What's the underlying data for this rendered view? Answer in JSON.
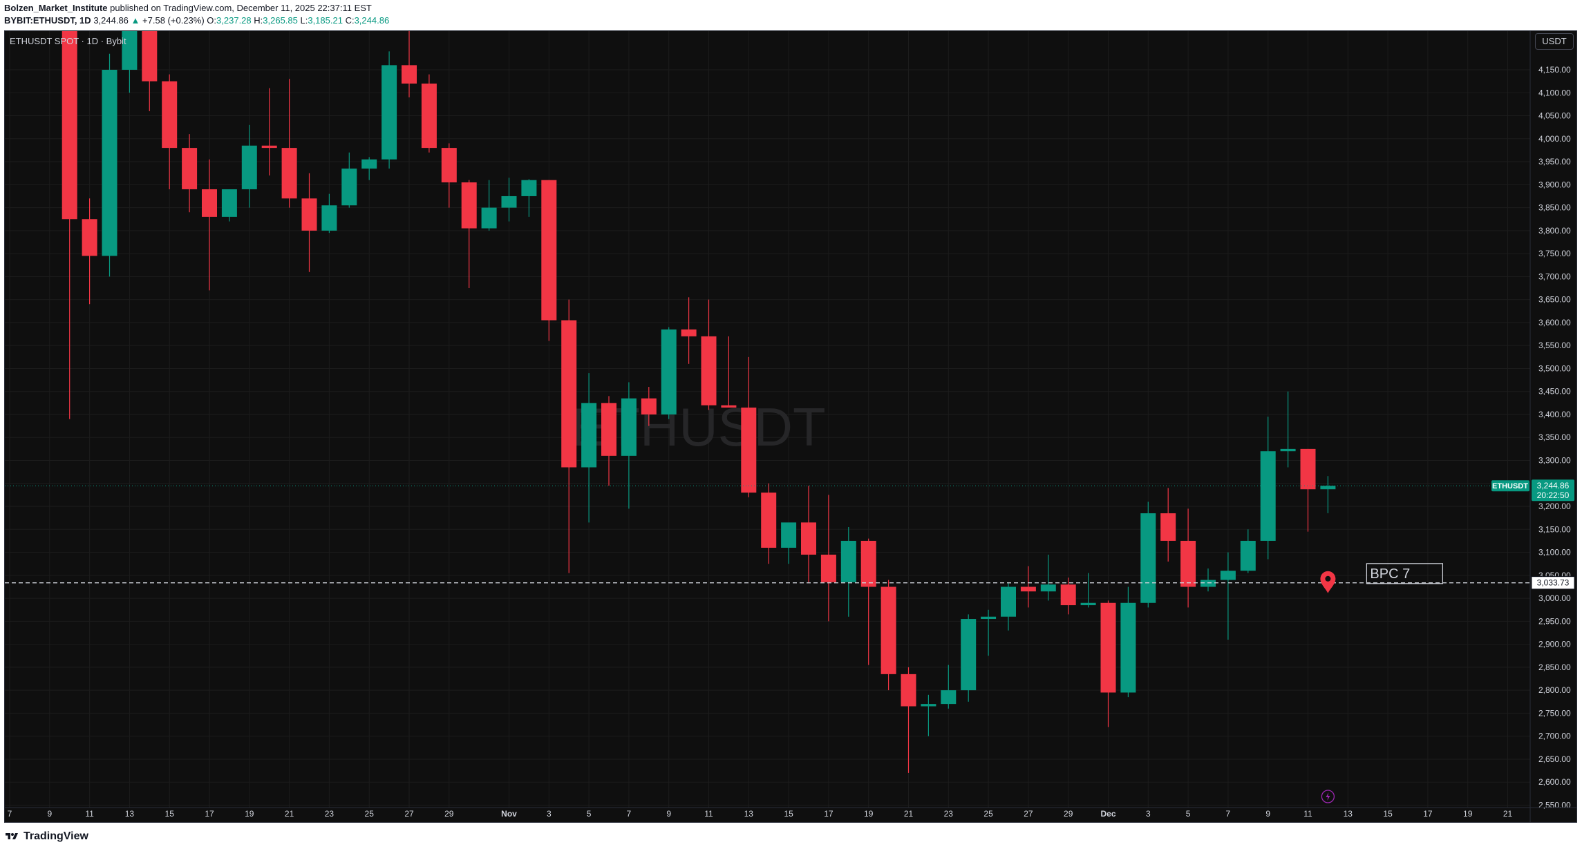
{
  "header": {
    "author": "Bolzen_Market_Institute",
    "published_text": "published on TradingView.com, December 11, 2025 22:37:11 EST",
    "symbol_line": "BYBIT:ETHUSDT, 1D",
    "last_price": "3,244.86",
    "change_arrow": "▲",
    "change": "+7.58 (+0.23%)",
    "o_label": "O:",
    "o_value": "3,237.28",
    "h_label": "H:",
    "h_value": "3,265.85",
    "l_label": "L:",
    "l_value": "3,185.21",
    "c_label": "C:",
    "c_value": "3,244.86"
  },
  "chart_legend": "ETHUSDT SPOT · 1D · Bybit",
  "currency_badge": "USDT",
  "footer": {
    "brand": "TradingView"
  },
  "colors": {
    "up": "#089981",
    "down": "#f23645",
    "background": "#0f0f0f",
    "grid": "#1c1c1c",
    "axis_text": "#d1d4dc"
  },
  "chart_data": {
    "type": "candlestick",
    "symbol": "ETHUSDT",
    "watermark": "ETHUSDT",
    "ylim": [
      2525,
      4225
    ],
    "y_ticks": [
      2550,
      2600,
      2650,
      2700,
      2750,
      2800,
      2850,
      2900,
      2950,
      3000,
      3050,
      3100,
      3150,
      3200,
      3250,
      3300,
      3350,
      3400,
      3450,
      3500,
      3550,
      3600,
      3650,
      3700,
      3750,
      3800,
      3850,
      3900,
      3950,
      4000,
      4050,
      4100,
      4150
    ],
    "x_ticks": [
      {
        "label": "7",
        "day": 0
      },
      {
        "label": "9",
        "day": 2
      },
      {
        "label": "11",
        "day": 4
      },
      {
        "label": "13",
        "day": 6
      },
      {
        "label": "15",
        "day": 8
      },
      {
        "label": "17",
        "day": 10
      },
      {
        "label": "19",
        "day": 12
      },
      {
        "label": "21",
        "day": 14
      },
      {
        "label": "23",
        "day": 16
      },
      {
        "label": "25",
        "day": 18
      },
      {
        "label": "27",
        "day": 20
      },
      {
        "label": "29",
        "day": 22
      },
      {
        "label": "Nov",
        "day": 25
      },
      {
        "label": "3",
        "day": 27
      },
      {
        "label": "5",
        "day": 29
      },
      {
        "label": "7",
        "day": 31
      },
      {
        "label": "9",
        "day": 33
      },
      {
        "label": "11",
        "day": 35
      },
      {
        "label": "13",
        "day": 37
      },
      {
        "label": "15",
        "day": 39
      },
      {
        "label": "17",
        "day": 41
      },
      {
        "label": "19",
        "day": 43
      },
      {
        "label": "21",
        "day": 45
      },
      {
        "label": "23",
        "day": 47
      },
      {
        "label": "25",
        "day": 49
      },
      {
        "label": "27",
        "day": 51
      },
      {
        "label": "29",
        "day": 53
      },
      {
        "label": "Dec",
        "day": 55
      },
      {
        "label": "3",
        "day": 57
      },
      {
        "label": "5",
        "day": 59
      },
      {
        "label": "7",
        "day": 61
      },
      {
        "label": "9",
        "day": 63
      },
      {
        "label": "11",
        "day": 65
      },
      {
        "label": "13",
        "day": 67
      },
      {
        "label": "15",
        "day": 69
      },
      {
        "label": "17",
        "day": 71
      },
      {
        "label": "19",
        "day": 73
      },
      {
        "label": "21",
        "day": 75
      }
    ],
    "candles": [
      {
        "day": 3,
        "o": 4400,
        "h": 4450,
        "l": 3390,
        "c": 3825
      },
      {
        "day": 4,
        "o": 3825,
        "h": 3870,
        "l": 3640,
        "c": 3745
      },
      {
        "day": 5,
        "o": 3745,
        "h": 4185,
        "l": 3700,
        "c": 4150
      },
      {
        "day": 6,
        "o": 4150,
        "h": 4290,
        "l": 4100,
        "c": 4260
      },
      {
        "day": 7,
        "o": 4260,
        "h": 4270,
        "l": 4060,
        "c": 4125
      },
      {
        "day": 8,
        "o": 4125,
        "h": 4140,
        "l": 3890,
        "c": 3980
      },
      {
        "day": 9,
        "o": 3980,
        "h": 4010,
        "l": 3840,
        "c": 3890
      },
      {
        "day": 10,
        "o": 3890,
        "h": 3955,
        "l": 3670,
        "c": 3830
      },
      {
        "day": 11,
        "o": 3830,
        "h": 3890,
        "l": 3820,
        "c": 3890
      },
      {
        "day": 12,
        "o": 3890,
        "h": 4030,
        "l": 3850,
        "c": 3985
      },
      {
        "day": 13,
        "o": 3985,
        "h": 4110,
        "l": 3920,
        "c": 3980
      },
      {
        "day": 14,
        "o": 3980,
        "h": 4130,
        "l": 3850,
        "c": 3870
      },
      {
        "day": 15,
        "o": 3870,
        "h": 3925,
        "l": 3710,
        "c": 3800
      },
      {
        "day": 16,
        "o": 3800,
        "h": 3880,
        "l": 3795,
        "c": 3855
      },
      {
        "day": 17,
        "o": 3855,
        "h": 3970,
        "l": 3850,
        "c": 3935
      },
      {
        "day": 18,
        "o": 3935,
        "h": 3960,
        "l": 3910,
        "c": 3955
      },
      {
        "day": 19,
        "o": 3955,
        "h": 4190,
        "l": 3935,
        "c": 4160
      },
      {
        "day": 20,
        "o": 4160,
        "h": 4280,
        "l": 4090,
        "c": 4120
      },
      {
        "day": 21,
        "o": 4120,
        "h": 4140,
        "l": 3970,
        "c": 3980
      },
      {
        "day": 22,
        "o": 3980,
        "h": 3990,
        "l": 3850,
        "c": 3905
      },
      {
        "day": 23,
        "o": 3905,
        "h": 3910,
        "l": 3675,
        "c": 3805
      },
      {
        "day": 24,
        "o": 3805,
        "h": 3910,
        "l": 3800,
        "c": 3850
      },
      {
        "day": 25,
        "o": 3850,
        "h": 3915,
        "l": 3820,
        "c": 3875
      },
      {
        "day": 26,
        "o": 3875,
        "h": 3912,
        "l": 3830,
        "c": 3910
      },
      {
        "day": 27,
        "o": 3910,
        "h": 3910,
        "l": 3560,
        "c": 3605
      },
      {
        "day": 28,
        "o": 3605,
        "h": 3650,
        "l": 3055,
        "c": 3285
      },
      {
        "day": 29,
        "o": 3285,
        "h": 3490,
        "l": 3165,
        "c": 3425
      },
      {
        "day": 30,
        "o": 3425,
        "h": 3440,
        "l": 3245,
        "c": 3310
      },
      {
        "day": 31,
        "o": 3310,
        "h": 3470,
        "l": 3195,
        "c": 3435
      },
      {
        "day": 32,
        "o": 3435,
        "h": 3460,
        "l": 3375,
        "c": 3400
      },
      {
        "day": 33,
        "o": 3400,
        "h": 3590,
        "l": 3390,
        "c": 3585
      },
      {
        "day": 34,
        "o": 3585,
        "h": 3655,
        "l": 3510,
        "c": 3570
      },
      {
        "day": 35,
        "o": 3570,
        "h": 3650,
        "l": 3410,
        "c": 3420
      },
      {
        "day": 36,
        "o": 3420,
        "h": 3570,
        "l": 3415,
        "c": 3415
      },
      {
        "day": 37,
        "o": 3415,
        "h": 3525,
        "l": 3220,
        "c": 3230
      },
      {
        "day": 38,
        "o": 3230,
        "h": 3250,
        "l": 3075,
        "c": 3110
      },
      {
        "day": 39,
        "o": 3110,
        "h": 3160,
        "l": 3075,
        "c": 3165
      },
      {
        "day": 40,
        "o": 3165,
        "h": 3245,
        "l": 3035,
        "c": 3095
      },
      {
        "day": 41,
        "o": 3095,
        "h": 3225,
        "l": 2950,
        "c": 3035
      },
      {
        "day": 42,
        "o": 3035,
        "h": 3155,
        "l": 2960,
        "c": 3125
      },
      {
        "day": 43,
        "o": 3125,
        "h": 3130,
        "l": 2855,
        "c": 3025
      },
      {
        "day": 44,
        "o": 3025,
        "h": 3040,
        "l": 2800,
        "c": 2835
      },
      {
        "day": 45,
        "o": 2835,
        "h": 2850,
        "l": 2620,
        "c": 2765
      },
      {
        "day": 46,
        "o": 2765,
        "h": 2790,
        "l": 2700,
        "c": 2770
      },
      {
        "day": 47,
        "o": 2770,
        "h": 2855,
        "l": 2760,
        "c": 2800
      },
      {
        "day": 48,
        "o": 2800,
        "h": 2965,
        "l": 2775,
        "c": 2955
      },
      {
        "day": 49,
        "o": 2955,
        "h": 2975,
        "l": 2875,
        "c": 2960
      },
      {
        "day": 50,
        "o": 2960,
        "h": 3035,
        "l": 2930,
        "c": 3025
      },
      {
        "day": 51,
        "o": 3025,
        "h": 3070,
        "l": 2980,
        "c": 3015
      },
      {
        "day": 52,
        "o": 3015,
        "h": 3095,
        "l": 2995,
        "c": 3030
      },
      {
        "day": 53,
        "o": 3030,
        "h": 3045,
        "l": 2965,
        "c": 2985
      },
      {
        "day": 54,
        "o": 2985,
        "h": 3055,
        "l": 2980,
        "c": 2990
      },
      {
        "day": 55,
        "o": 2990,
        "h": 2995,
        "l": 2720,
        "c": 2795
      },
      {
        "day": 56,
        "o": 2795,
        "h": 3025,
        "l": 2785,
        "c": 2990
      },
      {
        "day": 57,
        "o": 2990,
        "h": 3210,
        "l": 2980,
        "c": 3185
      },
      {
        "day": 58,
        "o": 3185,
        "h": 3240,
        "l": 3080,
        "c": 3125
      },
      {
        "day": 59,
        "o": 3125,
        "h": 3195,
        "l": 2980,
        "c": 3025
      },
      {
        "day": 60,
        "o": 3025,
        "h": 3065,
        "l": 3015,
        "c": 3040
      },
      {
        "day": 61,
        "o": 3040,
        "h": 3100,
        "l": 2910,
        "c": 3060
      },
      {
        "day": 62,
        "o": 3060,
        "h": 3150,
        "l": 3055,
        "c": 3125
      },
      {
        "day": 63,
        "o": 3125,
        "h": 3395,
        "l": 3085,
        "c": 3320
      },
      {
        "day": 64,
        "o": 3320,
        "h": 3450,
        "l": 3285,
        "c": 3325
      },
      {
        "day": 65,
        "o": 3325,
        "h": 3325,
        "l": 3145,
        "c": 3237.28
      },
      {
        "day": 66,
        "o": 3237.28,
        "h": 3265.85,
        "l": 3185.21,
        "c": 3244.86
      }
    ],
    "last_price_line": 3244.86,
    "price_labels": [
      {
        "text": "ETHUSDT",
        "kind": "symbol-tag"
      },
      {
        "text": "3,244.86",
        "kind": "last-price"
      },
      {
        "text": "20:22:50",
        "kind": "countdown"
      },
      {
        "text": "3,033.73",
        "kind": "horizontal-line"
      }
    ],
    "horizontal_line": 3033.73,
    "annotation": {
      "text": "BPC 7",
      "day": 66,
      "price": 3035
    },
    "event_marker_day": 66
  }
}
